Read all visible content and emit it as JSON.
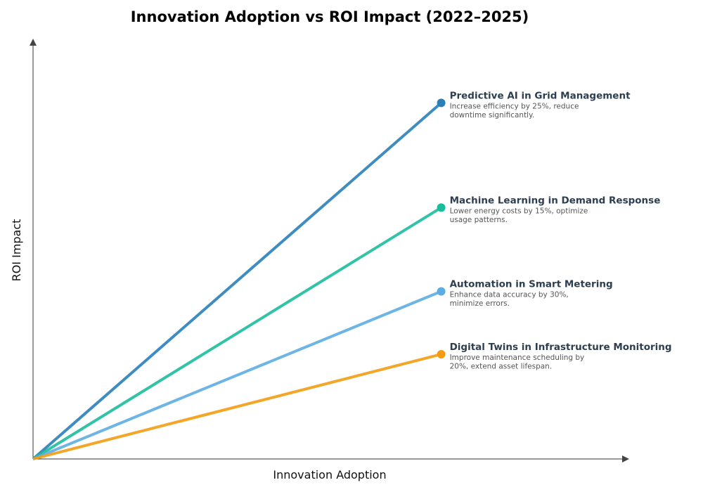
{
  "chart_data": {
    "type": "line",
    "title": "Innovation Adoption vs ROI Impact (2022–2025)",
    "xlabel": "Innovation Adoption",
    "ylabel": "ROI Impact",
    "xlim": [
      0,
      1.02
    ],
    "ylim": [
      0,
      1.0
    ],
    "grid": false,
    "ticks": false,
    "series": [
      {
        "name": "Predictive AI in Grid Management",
        "description": [
          "Increase efficiency by 25%, reduce",
          "downtime significantly."
        ],
        "color": "#2980b9",
        "x": [
          0,
          0.7
        ],
        "y": [
          0,
          0.85
        ]
      },
      {
        "name": "Machine Learning in Demand Response",
        "description": [
          "Lower energy costs by 15%, optimize",
          "usage patterns."
        ],
        "color": "#1abc9c",
        "x": [
          0,
          0.7
        ],
        "y": [
          0,
          0.6
        ]
      },
      {
        "name": "Automation in Smart Metering",
        "description": [
          "Enhance data accuracy by 30%,",
          "minimize errors."
        ],
        "color": "#5dade2",
        "x": [
          0,
          0.7
        ],
        "y": [
          0,
          0.4
        ]
      },
      {
        "name": "Digital Twins in Infrastructure Monitoring",
        "description": [
          "Improve maintenance scheduling by",
          "20%, extend asset lifespan."
        ],
        "color": "#f39c12",
        "x": [
          0,
          0.7
        ],
        "y": [
          0,
          0.25
        ]
      }
    ]
  }
}
